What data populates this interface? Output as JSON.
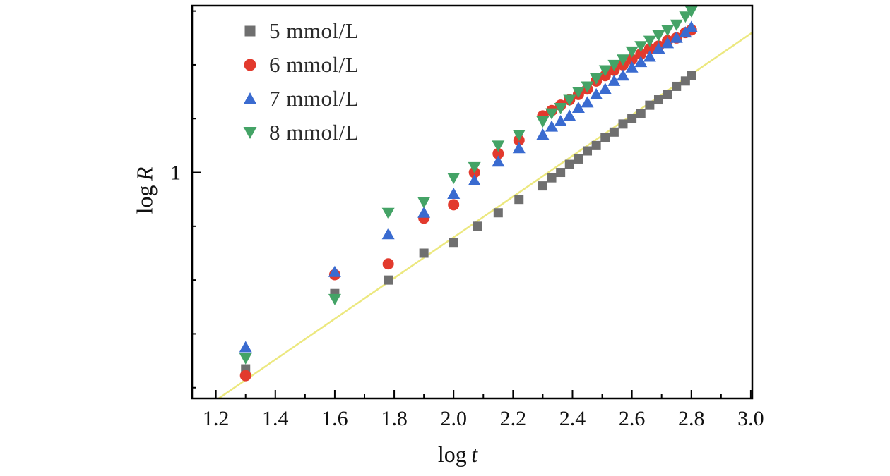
{
  "figure": {
    "background": "#ffffff",
    "frame_color": "#000000"
  },
  "chart_data": {
    "type": "scatter",
    "title": "",
    "xlabel": "log t",
    "ylabel": "log R",
    "xlabel_parts": {
      "prefix": "log",
      "var": "t"
    },
    "ylabel_parts": {
      "prefix": "log",
      "var": "R"
    },
    "xlim": [
      1.12,
      3.005
    ],
    "ylim": [
      0.16,
      1.62
    ],
    "grid": false,
    "legend_position": "top-left",
    "x_ticks": [
      1.2,
      1.4,
      1.6,
      1.8,
      2.0,
      2.2,
      2.4,
      2.6,
      2.8,
      3.0
    ],
    "x_tick_labels": [
      "1.2",
      "1.4",
      "1.6",
      "1.8",
      "2.0",
      "2.2",
      "2.4",
      "2.6",
      "2.8",
      "3.0"
    ],
    "x_minor_ticks": [
      1.3,
      1.5,
      1.7,
      1.9,
      2.1,
      2.3,
      2.5,
      2.7,
      2.9
    ],
    "y_major_ticks": [
      1.0
    ],
    "y_major_tick_labels": [
      "1"
    ],
    "y_minor_ticks": [
      0.2,
      0.4,
      0.6,
      0.8,
      1.2,
      1.4,
      1.6
    ],
    "series": [
      {
        "name": "5 mmol/L",
        "marker": "square",
        "color": "#6f6f6f",
        "points": [
          [
            1.3,
            0.27
          ],
          [
            1.6,
            0.55
          ],
          [
            1.78,
            0.6
          ],
          [
            1.9,
            0.7
          ],
          [
            2.0,
            0.74
          ],
          [
            2.08,
            0.8
          ],
          [
            2.15,
            0.85
          ],
          [
            2.22,
            0.9
          ],
          [
            2.3,
            0.95
          ],
          [
            2.33,
            0.98
          ],
          [
            2.36,
            1.0
          ],
          [
            2.39,
            1.03
          ],
          [
            2.42,
            1.05
          ],
          [
            2.45,
            1.08
          ],
          [
            2.48,
            1.1
          ],
          [
            2.51,
            1.13
          ],
          [
            2.54,
            1.15
          ],
          [
            2.57,
            1.18
          ],
          [
            2.6,
            1.2
          ],
          [
            2.63,
            1.22
          ],
          [
            2.66,
            1.25
          ],
          [
            2.69,
            1.27
          ],
          [
            2.72,
            1.29
          ],
          [
            2.75,
            1.32
          ],
          [
            2.78,
            1.34
          ],
          [
            2.8,
            1.36
          ]
        ]
      },
      {
        "name": "6 mmol/L",
        "marker": "circle",
        "color": "#e23a2d",
        "points": [
          [
            1.3,
            0.245
          ],
          [
            1.6,
            0.62
          ],
          [
            1.78,
            0.66
          ],
          [
            1.9,
            0.83
          ],
          [
            2.0,
            0.88
          ],
          [
            2.07,
            1.0
          ],
          [
            2.15,
            1.07
          ],
          [
            2.22,
            1.12
          ],
          [
            2.3,
            1.21
          ],
          [
            2.33,
            1.23
          ],
          [
            2.36,
            1.25
          ],
          [
            2.39,
            1.27
          ],
          [
            2.42,
            1.29
          ],
          [
            2.45,
            1.31
          ],
          [
            2.48,
            1.34
          ],
          [
            2.51,
            1.36
          ],
          [
            2.54,
            1.38
          ],
          [
            2.57,
            1.4
          ],
          [
            2.6,
            1.42
          ],
          [
            2.63,
            1.44
          ],
          [
            2.66,
            1.46
          ],
          [
            2.69,
            1.47
          ],
          [
            2.72,
            1.49
          ],
          [
            2.75,
            1.5
          ],
          [
            2.78,
            1.52
          ],
          [
            2.8,
            1.53
          ]
        ]
      },
      {
        "name": "7 mmol/L",
        "marker": "triangle-up",
        "color": "#3a6bd0",
        "points": [
          [
            1.3,
            0.35
          ],
          [
            1.6,
            0.63
          ],
          [
            1.78,
            0.77
          ],
          [
            1.9,
            0.85
          ],
          [
            2.0,
            0.92
          ],
          [
            2.07,
            0.97
          ],
          [
            2.15,
            1.04
          ],
          [
            2.22,
            1.09
          ],
          [
            2.3,
            1.14
          ],
          [
            2.33,
            1.17
          ],
          [
            2.36,
            1.19
          ],
          [
            2.39,
            1.21
          ],
          [
            2.42,
            1.24
          ],
          [
            2.45,
            1.26
          ],
          [
            2.48,
            1.29
          ],
          [
            2.51,
            1.31
          ],
          [
            2.54,
            1.34
          ],
          [
            2.57,
            1.36
          ],
          [
            2.6,
            1.39
          ],
          [
            2.63,
            1.41
          ],
          [
            2.66,
            1.43
          ],
          [
            2.69,
            1.46
          ],
          [
            2.72,
            1.48
          ],
          [
            2.75,
            1.5
          ],
          [
            2.78,
            1.52
          ],
          [
            2.8,
            1.54
          ]
        ]
      },
      {
        "name": "8 mmol/L",
        "marker": "triangle-down",
        "color": "#44a366",
        "points": [
          [
            1.3,
            0.31
          ],
          [
            1.6,
            0.53
          ],
          [
            1.78,
            0.85
          ],
          [
            1.9,
            0.89
          ],
          [
            2.0,
            0.98
          ],
          [
            2.07,
            1.02
          ],
          [
            2.15,
            1.1
          ],
          [
            2.22,
            1.14
          ],
          [
            2.3,
            1.19
          ],
          [
            2.33,
            1.22
          ],
          [
            2.36,
            1.24
          ],
          [
            2.39,
            1.27
          ],
          [
            2.42,
            1.3
          ],
          [
            2.45,
            1.32
          ],
          [
            2.48,
            1.35
          ],
          [
            2.51,
            1.38
          ],
          [
            2.54,
            1.4
          ],
          [
            2.57,
            1.42
          ],
          [
            2.6,
            1.45
          ],
          [
            2.63,
            1.47
          ],
          [
            2.66,
            1.49
          ],
          [
            2.69,
            1.51
          ],
          [
            2.72,
            1.53
          ],
          [
            2.75,
            1.55
          ],
          [
            2.78,
            1.58
          ],
          [
            2.8,
            1.6
          ]
        ]
      }
    ],
    "fit_line": {
      "color": "#ece87f",
      "width": 2.5,
      "points": [
        [
          1.13,
          0.1
        ],
        [
          3.005,
          1.52
        ]
      ]
    }
  },
  "legend": {
    "items": [
      {
        "label": "5 mmol/L"
      },
      {
        "label": "6 mmol/L"
      },
      {
        "label": "7 mmol/L"
      },
      {
        "label": "8 mmol/L"
      }
    ]
  }
}
